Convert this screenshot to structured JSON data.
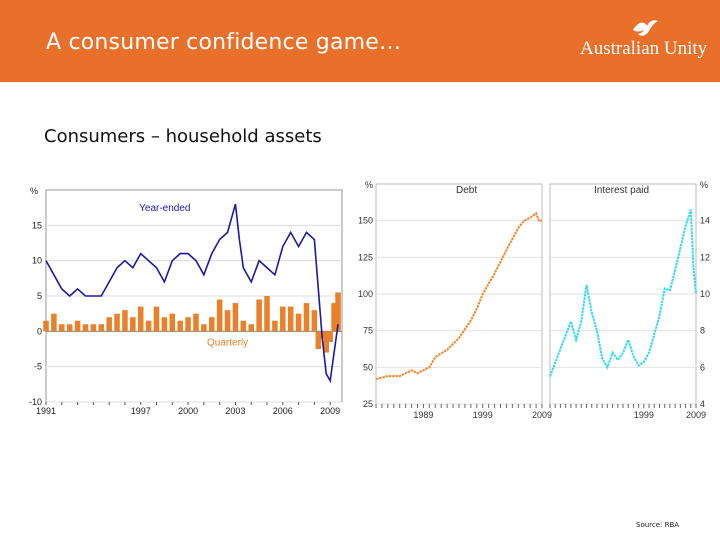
{
  "header": {
    "title": "A consumer confidence game…",
    "logo_text": "Australian Unity"
  },
  "subtitle": "Consumers – household assets",
  "source": "Source: RBA",
  "colors": {
    "header_bg": "#e8702a",
    "year_ended": "#1a1aa8",
    "quarterly": "#e8812a",
    "debt": "#f0892e",
    "interest": "#33d9ef"
  },
  "chart_data": [
    {
      "type": "bar",
      "title": "",
      "ylabel": "%",
      "ylim": [
        -10,
        20
      ],
      "yticks": [
        -10,
        -5,
        0,
        5,
        10,
        15
      ],
      "xlim": [
        1991,
        2009.75
      ],
      "xticks": [
        1991,
        1997,
        2000,
        2003,
        2006,
        2009
      ],
      "series": [
        {
          "name": "Year-ended",
          "type": "line",
          "x": [
            1991,
            1991.5,
            1992,
            1992.5,
            1993,
            1993.5,
            1994,
            1994.5,
            1995,
            1995.5,
            1996,
            1996.5,
            1997,
            1997.5,
            1998,
            1998.5,
            1999,
            1999.5,
            2000,
            2000.5,
            2001,
            2001.5,
            2002,
            2002.5,
            2002.75,
            2003,
            2003.25,
            2003.5,
            2004,
            2004.5,
            2005,
            2005.5,
            2006,
            2006.5,
            2007,
            2007.5,
            2008,
            2008.25,
            2008.5,
            2008.75,
            2009,
            2009.25,
            2009.5
          ],
          "values": [
            10,
            8,
            6,
            5,
            6,
            5,
            5,
            5,
            7,
            9,
            10,
            9,
            11,
            10,
            9,
            7,
            10,
            11,
            11,
            10,
            8,
            11,
            13,
            14,
            16,
            18,
            13,
            9,
            7,
            10,
            9,
            8,
            12,
            14,
            12,
            14,
            13,
            6,
            -1,
            -6,
            -7,
            -3,
            1
          ]
        },
        {
          "name": "Quarterly",
          "type": "bar",
          "x": [
            1991,
            1991.5,
            1992,
            1992.5,
            1993,
            1993.5,
            1994,
            1994.5,
            1995,
            1995.5,
            1996,
            1996.5,
            1997,
            1997.5,
            1998,
            1998.5,
            1999,
            1999.5,
            2000,
            2000.5,
            2001,
            2001.5,
            2002,
            2002.5,
            2003,
            2003.5,
            2004,
            2004.5,
            2005,
            2005.5,
            2006,
            2006.5,
            2007,
            2007.5,
            2008,
            2008.25,
            2008.5,
            2008.75,
            2009,
            2009.25,
            2009.5
          ],
          "values": [
            1.5,
            2.5,
            1,
            1,
            1.5,
            1,
            1,
            1,
            2,
            2.5,
            3,
            2,
            3.5,
            1.5,
            3.5,
            2,
            2.5,
            1.5,
            2,
            2.5,
            1,
            2,
            4.5,
            3,
            4,
            1.5,
            1,
            4.5,
            5,
            1.5,
            3.5,
            3.5,
            2.5,
            4,
            3,
            -2.5,
            -1,
            -3,
            -1.5,
            4,
            5.5
          ]
        }
      ]
    },
    {
      "type": "line",
      "title": "",
      "panels": [
        {
          "title": "Debt",
          "ylabel": "%",
          "ylim": [
            25,
            175
          ],
          "yticks": [
            25,
            50,
            75,
            100,
            125,
            150
          ],
          "xlim": [
            1981,
            2009
          ],
          "xticks": [
            1989,
            1999,
            2009
          ],
          "series": [
            {
              "name": "Debt",
              "x": [
                1981,
                1983,
                1985,
                1987,
                1988,
                1990,
                1991,
                1993,
                1995,
                1996,
                1997,
                1998,
                1999,
                2001,
                2003,
                2005,
                2006,
                2007,
                2008,
                2008.5,
                2009
              ],
              "values": [
                42,
                44,
                44,
                48,
                46,
                50,
                57,
                62,
                70,
                76,
                82,
                90,
                100,
                114,
                130,
                145,
                150,
                152,
                155,
                150,
                150
              ]
            }
          ]
        },
        {
          "title": "Interest paid",
          "ylabel": "%",
          "ylim": [
            4,
            16
          ],
          "yticks": [
            4,
            6,
            8,
            10,
            12,
            14
          ],
          "xlim": [
            1981,
            2009
          ],
          "xticks": [
            1999,
            2009
          ],
          "series": [
            {
              "name": "Interest paid",
              "x": [
                1981,
                1983,
                1985,
                1986,
                1987,
                1988,
                1989,
                1990,
                1991,
                1992,
                1993,
                1994,
                1995,
                1996,
                1997,
                1998,
                1999,
                2000,
                2001,
                2002,
                2003,
                2004,
                2005,
                2006,
                2007,
                2008,
                2008.5,
                2009
              ],
              "values": [
                5.5,
                7,
                8.5,
                7.5,
                8.5,
                10.5,
                9,
                8,
                6.5,
                6,
                6.8,
                6.4,
                6.8,
                7.5,
                6.6,
                6.1,
                6.3,
                6.8,
                7.8,
                8.8,
                10.3,
                10.2,
                11.3,
                12.5,
                13.7,
                14.6,
                11.5,
                10
              ]
            }
          ]
        }
      ]
    }
  ]
}
